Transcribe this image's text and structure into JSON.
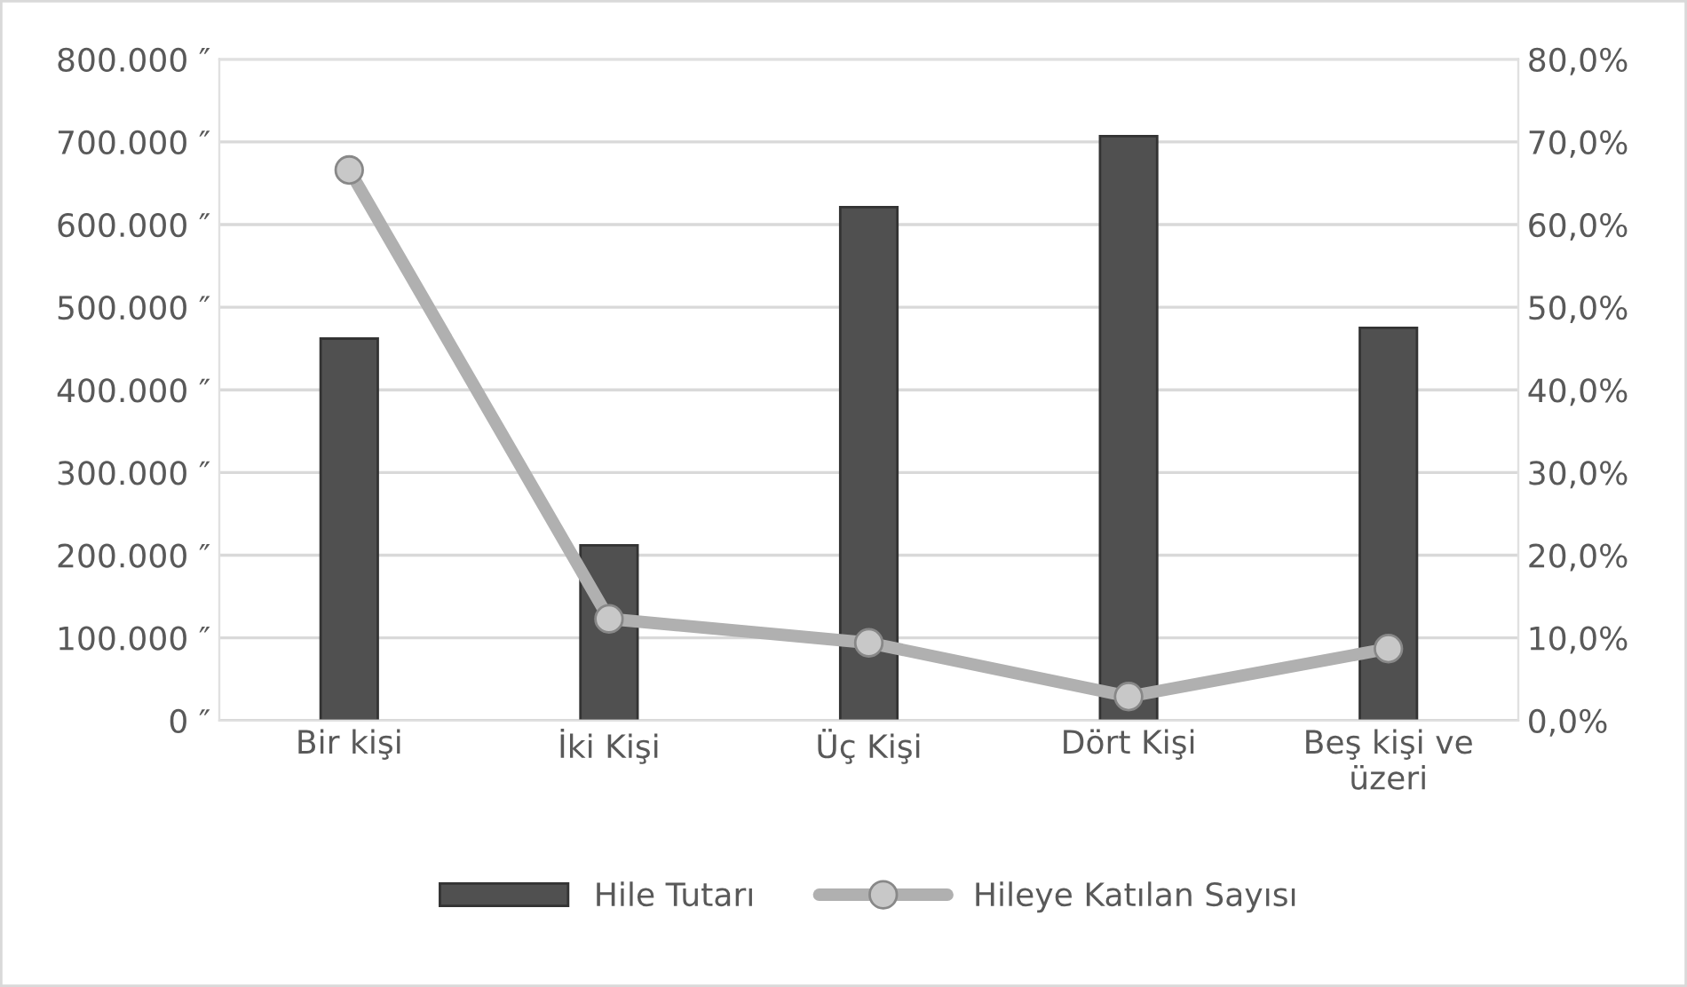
{
  "chart_data": {
    "type": "bar",
    "categories": [
      "Bir kişi",
      "İki Kişi",
      "Üç Kişi",
      "Dört Kişi",
      "Beş kişi ve\nüzeri"
    ],
    "series": [
      {
        "name": "Hile Tutarı",
        "color": "#505050",
        "values": [
          462000,
          212000,
          621000,
          707000,
          475000
        ]
      },
      {
        "name": "Hileye Katılan Sayısı",
        "type": "line",
        "axis": "y2",
        "color": "#b0b0b0",
        "values": [
          66.6,
          12.3,
          9.4,
          2.9,
          8.7
        ]
      }
    ],
    "ylim": [
      0,
      800000
    ],
    "yticks": [
      {
        "value": 0,
        "label": "0 ″"
      },
      {
        "value": 100000,
        "label": "100.000 ″"
      },
      {
        "value": 200000,
        "label": "200.000 ″"
      },
      {
        "value": 300000,
        "label": "300.000 ″"
      },
      {
        "value": 400000,
        "label": "400.000 ″"
      },
      {
        "value": 500000,
        "label": "500.000 ″"
      },
      {
        "value": 600000,
        "label": "600.000 ″"
      },
      {
        "value": 700000,
        "label": "700.000 ″"
      },
      {
        "value": 800000,
        "label": "800.000 ″"
      }
    ],
    "y2lim": [
      0,
      80
    ],
    "y2ticks": [
      {
        "value": 0,
        "label": "0,0%"
      },
      {
        "value": 10,
        "label": "10,0%"
      },
      {
        "value": 20,
        "label": "20,0%"
      },
      {
        "value": 30,
        "label": "30,0%"
      },
      {
        "value": 40,
        "label": "40,0%"
      },
      {
        "value": 50,
        "label": "50,0%"
      },
      {
        "value": 60,
        "label": "60,0%"
      },
      {
        "value": 70,
        "label": "70,0%"
      },
      {
        "value": 80,
        "label": "80,0%"
      }
    ],
    "grid": "y",
    "legend": "bottom",
    "marker": "circle",
    "line_style": "solid"
  }
}
